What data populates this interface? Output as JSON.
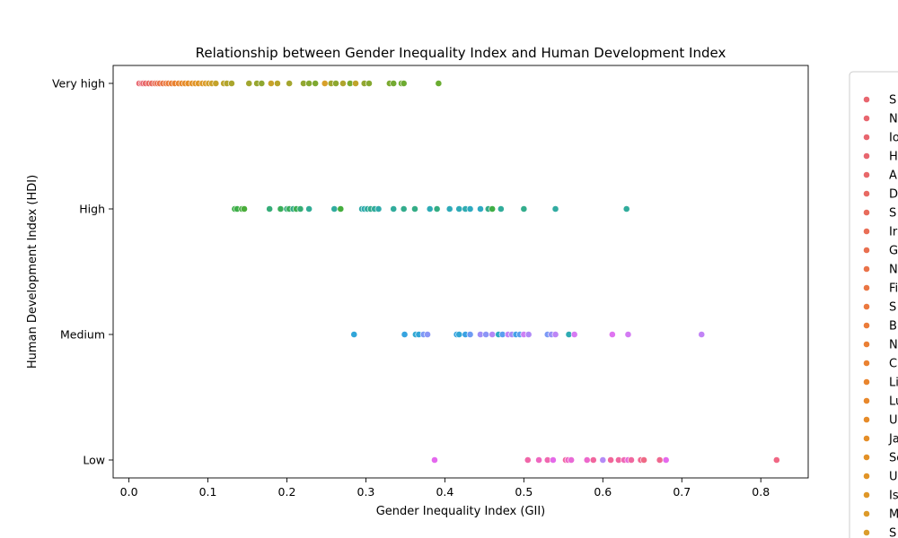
{
  "chart_data": {
    "type": "scatter",
    "title": "Relationship between Gender Inequality Index and Human Development Index",
    "xlabel": "Gender Inequality Index (GII)",
    "ylabel": "Human Development Index (HDI)",
    "xlim": [
      -0.02,
      0.86
    ],
    "x_ticks": [
      "0.0",
      "0.1",
      "0.2",
      "0.3",
      "0.4",
      "0.5",
      "0.6",
      "0.7",
      "0.8"
    ],
    "y_categories": [
      "Very high",
      "High",
      "Medium",
      "Low"
    ],
    "grid": false,
    "legend_placement": "right",
    "legend_entries_visible": [
      "S",
      "N",
      "Io",
      "H",
      "Au",
      "D",
      "S",
      "Ir",
      "G",
      "N",
      "Fi",
      "S",
      "B",
      "N",
      "C",
      "Li",
      "Lu",
      "U",
      "Ja",
      "Sc",
      "U",
      "Is",
      "M",
      "S"
    ],
    "legend_colors": [
      "#e8666f",
      "#e8666f",
      "#e8666f",
      "#e8666f",
      "#e8686a",
      "#e86a63",
      "#e86c5c",
      "#e96e56",
      "#e97050",
      "#ea734a",
      "#ea7644",
      "#eb793f",
      "#eb7c3a",
      "#ea7f35",
      "#ea8231",
      "#e9852e",
      "#e8882b",
      "#e68b29",
      "#e58e28",
      "#e39127",
      "#e19427",
      "#df9728",
      "#dd9a29",
      "#db9d2b"
    ],
    "series": [
      {
        "name": "Very high",
        "points": [
          {
            "x": 0.013,
            "y": "Very high",
            "c": "#e8666f"
          },
          {
            "x": 0.016,
            "y": "Very high",
            "c": "#e8666f"
          },
          {
            "x": 0.018,
            "y": "Very high",
            "c": "#e8666f"
          },
          {
            "x": 0.021,
            "y": "Very high",
            "c": "#e8686a"
          },
          {
            "x": 0.025,
            "y": "Very high",
            "c": "#e86a63"
          },
          {
            "x": 0.029,
            "y": "Very high",
            "c": "#e86c5c"
          },
          {
            "x": 0.033,
            "y": "Very high",
            "c": "#e96e56"
          },
          {
            "x": 0.036,
            "y": "Very high",
            "c": "#e97050"
          },
          {
            "x": 0.039,
            "y": "Very high",
            "c": "#ea734a"
          },
          {
            "x": 0.043,
            "y": "Very high",
            "c": "#ea7644"
          },
          {
            "x": 0.047,
            "y": "Very high",
            "c": "#eb793f"
          },
          {
            "x": 0.05,
            "y": "Very high",
            "c": "#eb7c3a"
          },
          {
            "x": 0.054,
            "y": "Very high",
            "c": "#ea7f35"
          },
          {
            "x": 0.058,
            "y": "Very high",
            "c": "#ea8231"
          },
          {
            "x": 0.063,
            "y": "Very high",
            "c": "#e9852e"
          },
          {
            "x": 0.067,
            "y": "Very high",
            "c": "#e8882b"
          },
          {
            "x": 0.071,
            "y": "Very high",
            "c": "#e68b29"
          },
          {
            "x": 0.075,
            "y": "Very high",
            "c": "#e58e28"
          },
          {
            "x": 0.08,
            "y": "Very high",
            "c": "#e39127"
          },
          {
            "x": 0.084,
            "y": "Very high",
            "c": "#e19427"
          },
          {
            "x": 0.088,
            "y": "Very high",
            "c": "#df9728"
          },
          {
            "x": 0.093,
            "y": "Very high",
            "c": "#dd9a29"
          },
          {
            "x": 0.097,
            "y": "Very high",
            "c": "#db9d2b"
          },
          {
            "x": 0.101,
            "y": "Very high",
            "c": "#d49f2a"
          },
          {
            "x": 0.105,
            "y": "Very high",
            "c": "#cca12a"
          },
          {
            "x": 0.11,
            "y": "Very high",
            "c": "#c4a32b"
          },
          {
            "x": 0.12,
            "y": "Very high",
            "c": "#bca42c"
          },
          {
            "x": 0.124,
            "y": "Very high",
            "c": "#b3a52d"
          },
          {
            "x": 0.13,
            "y": "Very high",
            "c": "#aaa62e"
          },
          {
            "x": 0.152,
            "y": "Very high",
            "c": "#a1a62f"
          },
          {
            "x": 0.162,
            "y": "Very high",
            "c": "#98a730"
          },
          {
            "x": 0.168,
            "y": "Very high",
            "c": "#8fa731"
          },
          {
            "x": 0.18,
            "y": "Very high",
            "c": "#c8a22a"
          },
          {
            "x": 0.188,
            "y": "Very high",
            "c": "#b6a52c"
          },
          {
            "x": 0.203,
            "y": "Very high",
            "c": "#a4a62f"
          },
          {
            "x": 0.221,
            "y": "Very high",
            "c": "#92a731"
          },
          {
            "x": 0.228,
            "y": "Very high",
            "c": "#86a831"
          },
          {
            "x": 0.236,
            "y": "Very high",
            "c": "#7ea931"
          },
          {
            "x": 0.248,
            "y": "Very high",
            "c": "#d8a02a"
          },
          {
            "x": 0.256,
            "y": "Very high",
            "c": "#9fa62f"
          },
          {
            "x": 0.262,
            "y": "Very high",
            "c": "#8da730"
          },
          {
            "x": 0.271,
            "y": "Very high",
            "c": "#aea52d"
          },
          {
            "x": 0.28,
            "y": "Very high",
            "c": "#7aaa31"
          },
          {
            "x": 0.287,
            "y": "Very high",
            "c": "#c0a42b"
          },
          {
            "x": 0.298,
            "y": "Very high",
            "c": "#92a731"
          },
          {
            "x": 0.304,
            "y": "Very high",
            "c": "#85a831"
          },
          {
            "x": 0.33,
            "y": "Very high",
            "c": "#7caa31"
          },
          {
            "x": 0.335,
            "y": "Very high",
            "c": "#74aa31"
          },
          {
            "x": 0.345,
            "y": "Very high",
            "c": "#70ab31"
          },
          {
            "x": 0.348,
            "y": "Very high",
            "c": "#6dab31"
          },
          {
            "x": 0.392,
            "y": "Very high",
            "c": "#6aac31"
          }
        ]
      },
      {
        "name": "High",
        "points": [
          {
            "x": 0.134,
            "y": "High",
            "c": "#3cae47"
          },
          {
            "x": 0.137,
            "y": "High",
            "c": "#3cae47"
          },
          {
            "x": 0.143,
            "y": "High",
            "c": "#45ae3e"
          },
          {
            "x": 0.146,
            "y": "High",
            "c": "#4aad3a"
          },
          {
            "x": 0.178,
            "y": "High",
            "c": "#36ad78"
          },
          {
            "x": 0.192,
            "y": "High",
            "c": "#3aae5a"
          },
          {
            "x": 0.2,
            "y": "High",
            "c": "#35ad7e"
          },
          {
            "x": 0.203,
            "y": "High",
            "c": "#3aae5c"
          },
          {
            "x": 0.208,
            "y": "High",
            "c": "#34ad85"
          },
          {
            "x": 0.212,
            "y": "High",
            "c": "#3bae52"
          },
          {
            "x": 0.217,
            "y": "High",
            "c": "#36ad74"
          },
          {
            "x": 0.228,
            "y": "High",
            "c": "#32ac95"
          },
          {
            "x": 0.26,
            "y": "High",
            "c": "#31ac9e"
          },
          {
            "x": 0.268,
            "y": "High",
            "c": "#45ae3e"
          },
          {
            "x": 0.295,
            "y": "High",
            "c": "#30aba6"
          },
          {
            "x": 0.298,
            "y": "High",
            "c": "#2fabae"
          },
          {
            "x": 0.302,
            "y": "High",
            "c": "#30ab9f"
          },
          {
            "x": 0.306,
            "y": "High",
            "c": "#33ac8f"
          },
          {
            "x": 0.311,
            "y": "High",
            "c": "#31ac9b"
          },
          {
            "x": 0.316,
            "y": "High",
            "c": "#30abaa"
          },
          {
            "x": 0.335,
            "y": "High",
            "c": "#31ac9c"
          },
          {
            "x": 0.348,
            "y": "High",
            "c": "#33ac8c"
          },
          {
            "x": 0.362,
            "y": "High",
            "c": "#34ad86"
          },
          {
            "x": 0.381,
            "y": "High",
            "c": "#2eabb6"
          },
          {
            "x": 0.39,
            "y": "High",
            "c": "#34ad83"
          },
          {
            "x": 0.406,
            "y": "High",
            "c": "#2eaab9"
          },
          {
            "x": 0.418,
            "y": "High",
            "c": "#2eaab8"
          },
          {
            "x": 0.426,
            "y": "High",
            "c": "#2facb1"
          },
          {
            "x": 0.432,
            "y": "High",
            "c": "#2eaac0"
          },
          {
            "x": 0.445,
            "y": "High",
            "c": "#2ea9c2"
          },
          {
            "x": 0.455,
            "y": "High",
            "c": "#35ac89"
          },
          {
            "x": 0.46,
            "y": "High",
            "c": "#3fae45"
          },
          {
            "x": 0.471,
            "y": "High",
            "c": "#31ac9a"
          },
          {
            "x": 0.5,
            "y": "High",
            "c": "#33ad8c"
          },
          {
            "x": 0.54,
            "y": "High",
            "c": "#31aba1"
          },
          {
            "x": 0.63,
            "y": "High",
            "c": "#31ac9c"
          }
        ]
      },
      {
        "name": "Medium",
        "points": [
          {
            "x": 0.285,
            "y": "Medium",
            "c": "#31a6d9"
          },
          {
            "x": 0.349,
            "y": "Medium",
            "c": "#37a4e0"
          },
          {
            "x": 0.363,
            "y": "Medium",
            "c": "#32a8d3"
          },
          {
            "x": 0.367,
            "y": "Medium",
            "c": "#31a6d8"
          },
          {
            "x": 0.373,
            "y": "Medium",
            "c": "#7d9af5"
          },
          {
            "x": 0.378,
            "y": "Medium",
            "c": "#8b97f6"
          },
          {
            "x": 0.415,
            "y": "Medium",
            "c": "#36a3df"
          },
          {
            "x": 0.418,
            "y": "Medium",
            "c": "#33a7d6"
          },
          {
            "x": 0.426,
            "y": "Medium",
            "c": "#3aa1e3"
          },
          {
            "x": 0.432,
            "y": "Medium",
            "c": "#6e9cf3"
          },
          {
            "x": 0.445,
            "y": "Medium",
            "c": "#a08ff7"
          },
          {
            "x": 0.452,
            "y": "Medium",
            "c": "#8c96f6"
          },
          {
            "x": 0.46,
            "y": "Medium",
            "c": "#b389f7"
          },
          {
            "x": 0.468,
            "y": "Medium",
            "c": "#2faac6"
          },
          {
            "x": 0.473,
            "y": "Medium",
            "c": "#5a9ef0"
          },
          {
            "x": 0.48,
            "y": "Medium",
            "c": "#c384f6"
          },
          {
            "x": 0.485,
            "y": "Medium",
            "c": "#a68df7"
          },
          {
            "x": 0.49,
            "y": "Medium",
            "c": "#45a0e8"
          },
          {
            "x": 0.495,
            "y": "Medium",
            "c": "#58a0ee"
          },
          {
            "x": 0.5,
            "y": "Medium",
            "c": "#cc80f4"
          },
          {
            "x": 0.506,
            "y": "Medium",
            "c": "#b08af7"
          },
          {
            "x": 0.53,
            "y": "Medium",
            "c": "#7c9af5"
          },
          {
            "x": 0.535,
            "y": "Medium",
            "c": "#9891f7"
          },
          {
            "x": 0.54,
            "y": "Medium",
            "c": "#bd86f6"
          },
          {
            "x": 0.557,
            "y": "Medium",
            "c": "#2facb3"
          },
          {
            "x": 0.564,
            "y": "Medium",
            "c": "#d67af3"
          },
          {
            "x": 0.612,
            "y": "Medium",
            "c": "#df74f1"
          },
          {
            "x": 0.632,
            "y": "Medium",
            "c": "#d37bf3"
          },
          {
            "x": 0.725,
            "y": "Medium",
            "c": "#c283f6"
          }
        ]
      },
      {
        "name": "Low",
        "points": [
          {
            "x": 0.387,
            "y": "Low",
            "c": "#e468ee"
          },
          {
            "x": 0.505,
            "y": "Low",
            "c": "#f066a8"
          },
          {
            "x": 0.519,
            "y": "Low",
            "c": "#ef67c0"
          },
          {
            "x": 0.53,
            "y": "Low",
            "c": "#f068b0"
          },
          {
            "x": 0.537,
            "y": "Low",
            "c": "#e46ae9"
          },
          {
            "x": 0.553,
            "y": "Low",
            "c": "#f167a0"
          },
          {
            "x": 0.556,
            "y": "Low",
            "c": "#f066c4"
          },
          {
            "x": 0.56,
            "y": "Low",
            "c": "#e96ad6"
          },
          {
            "x": 0.58,
            "y": "Low",
            "c": "#ed68cc"
          },
          {
            "x": 0.588,
            "y": "Low",
            "c": "#f1669e"
          },
          {
            "x": 0.6,
            "y": "Low",
            "c": "#b48bf6"
          },
          {
            "x": 0.61,
            "y": "Low",
            "c": "#f16699"
          },
          {
            "x": 0.62,
            "y": "Low",
            "c": "#f0679f"
          },
          {
            "x": 0.627,
            "y": "Low",
            "c": "#f067b5"
          },
          {
            "x": 0.632,
            "y": "Low",
            "c": "#e86ad8"
          },
          {
            "x": 0.636,
            "y": "Low",
            "c": "#f0689f"
          },
          {
            "x": 0.648,
            "y": "Low",
            "c": "#f06892"
          },
          {
            "x": 0.652,
            "y": "Low",
            "c": "#ef6985"
          },
          {
            "x": 0.672,
            "y": "Low",
            "c": "#ef688f"
          },
          {
            "x": 0.68,
            "y": "Low",
            "c": "#e46aee"
          },
          {
            "x": 0.82,
            "y": "Low",
            "c": "#f06784"
          }
        ]
      }
    ]
  }
}
